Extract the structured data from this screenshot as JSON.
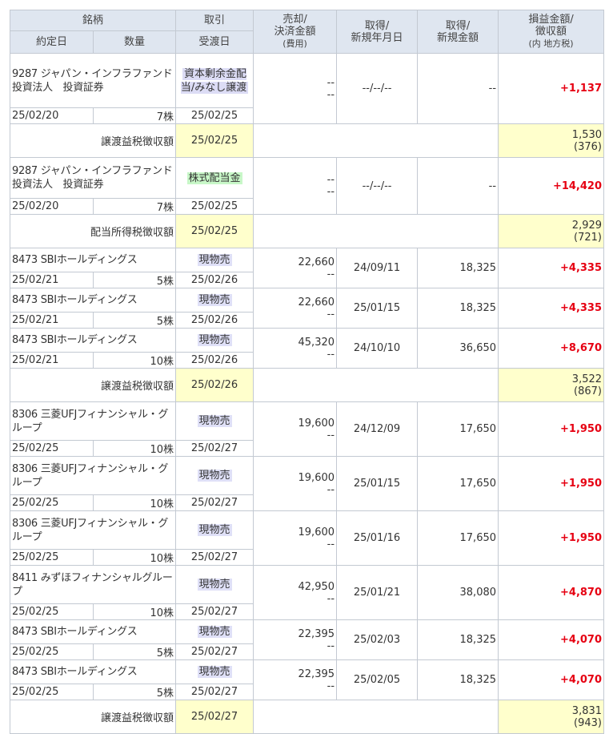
{
  "headers": {
    "brand": "銘柄",
    "contract_date": "約定日",
    "quantity": "数量",
    "type": "取引",
    "delivery_date": "受渡日",
    "sale_amount_line1": "売却/",
    "sale_amount_line2": "決済金額",
    "sale_amount_line3": "(費用)",
    "acquisition_date_line1": "取得/",
    "acquisition_date_line2": "新規年月日",
    "acquisition_amount_line1": "取得/",
    "acquisition_amount_line2": "新規金額",
    "pl_line1": "損益金額/",
    "pl_line2": "徴収額",
    "pl_line3": "(内 地方税)"
  },
  "trades": [
    {
      "name": "9287 ジャパン・インフラファンド投資法人　投資証券",
      "contract_date": "25/02/20",
      "quantity": "7株",
      "type": "資本剰余金配当/みなし譲渡",
      "type_style": "capital",
      "delivery_date": "25/02/25",
      "amount": "--",
      "fee": "--",
      "acq_date": "--/--/--",
      "acq_amount": "--",
      "pl": "+1,137"
    },
    {
      "summary": true,
      "label": "譲渡益税徴収額",
      "delivery_date": "25/02/25",
      "tax": "1,530",
      "local_tax": "(376)"
    },
    {
      "name": "9287 ジャパン・インフラファンド投資法人　投資証券",
      "contract_date": "25/02/20",
      "quantity": "7株",
      "type": "株式配当金",
      "type_style": "dividend",
      "delivery_date": "25/02/25",
      "amount": "--",
      "fee": "--",
      "acq_date": "--/--/--",
      "acq_amount": "--",
      "pl": "+14,420"
    },
    {
      "summary": true,
      "label": "配当所得税徴収額",
      "delivery_date": "25/02/25",
      "tax": "2,929",
      "local_tax": "(721)"
    },
    {
      "name": "8473 SBIホールディングス",
      "contract_date": "25/02/21",
      "quantity": "5株",
      "type": "現物売",
      "type_style": "sell",
      "delivery_date": "25/02/26",
      "amount": "22,660",
      "fee": "--",
      "acq_date": "24/09/11",
      "acq_amount": "18,325",
      "pl": "+4,335"
    },
    {
      "name": "8473 SBIホールディングス",
      "contract_date": "25/02/21",
      "quantity": "5株",
      "type": "現物売",
      "type_style": "sell",
      "delivery_date": "25/02/26",
      "amount": "22,660",
      "fee": "--",
      "acq_date": "25/01/15",
      "acq_amount": "18,325",
      "pl": "+4,335"
    },
    {
      "name": "8473 SBIホールディングス",
      "contract_date": "25/02/21",
      "quantity": "10株",
      "type": "現物売",
      "type_style": "sell",
      "delivery_date": "25/02/26",
      "amount": "45,320",
      "fee": "--",
      "acq_date": "24/10/10",
      "acq_amount": "36,650",
      "pl": "+8,670"
    },
    {
      "summary": true,
      "label": "譲渡益税徴収額",
      "delivery_date": "25/02/26",
      "tax": "3,522",
      "local_tax": "(867)"
    },
    {
      "name": "8306 三菱UFJフィナンシャル・グループ",
      "contract_date": "25/02/25",
      "quantity": "10株",
      "type": "現物売",
      "type_style": "sell",
      "delivery_date": "25/02/27",
      "amount": "19,600",
      "fee": "--",
      "acq_date": "24/12/09",
      "acq_amount": "17,650",
      "pl": "+1,950"
    },
    {
      "name": "8306 三菱UFJフィナンシャル・グループ",
      "contract_date": "25/02/25",
      "quantity": "10株",
      "type": "現物売",
      "type_style": "sell",
      "delivery_date": "25/02/27",
      "amount": "19,600",
      "fee": "--",
      "acq_date": "25/01/15",
      "acq_amount": "17,650",
      "pl": "+1,950"
    },
    {
      "name": "8306 三菱UFJフィナンシャル・グループ",
      "contract_date": "25/02/25",
      "quantity": "10株",
      "type": "現物売",
      "type_style": "sell",
      "delivery_date": "25/02/27",
      "amount": "19,600",
      "fee": "--",
      "acq_date": "25/01/16",
      "acq_amount": "17,650",
      "pl": "+1,950"
    },
    {
      "name": "8411 みずほフィナンシャルグループ",
      "contract_date": "25/02/25",
      "quantity": "10株",
      "type": "現物売",
      "type_style": "sell",
      "delivery_date": "25/02/27",
      "amount": "42,950",
      "fee": "--",
      "acq_date": "25/01/21",
      "acq_amount": "38,080",
      "pl": "+4,870"
    },
    {
      "name": "8473 SBIホールディングス",
      "contract_date": "25/02/25",
      "quantity": "5株",
      "type": "現物売",
      "type_style": "sell",
      "delivery_date": "25/02/27",
      "amount": "22,395",
      "fee": "--",
      "acq_date": "25/02/03",
      "acq_amount": "18,325",
      "pl": "+4,070"
    },
    {
      "name": "8473 SBIホールディングス",
      "contract_date": "25/02/25",
      "quantity": "5株",
      "type": "現物売",
      "type_style": "sell",
      "delivery_date": "25/02/27",
      "amount": "22,395",
      "fee": "--",
      "acq_date": "25/02/05",
      "acq_amount": "18,325",
      "pl": "+4,070"
    },
    {
      "summary": true,
      "label": "譲渡益税徴収額",
      "delivery_date": "25/02/27",
      "tax": "3,831",
      "local_tax": "(943)"
    }
  ],
  "colors": {
    "header_bg": "#dfe6f0",
    "border": "#c3c9d2",
    "profit_red": "#e60012",
    "summary_yellow": "#ffffcc",
    "sell_tag": "#dfe0f7",
    "dividend_tag": "#c8f7c8"
  }
}
